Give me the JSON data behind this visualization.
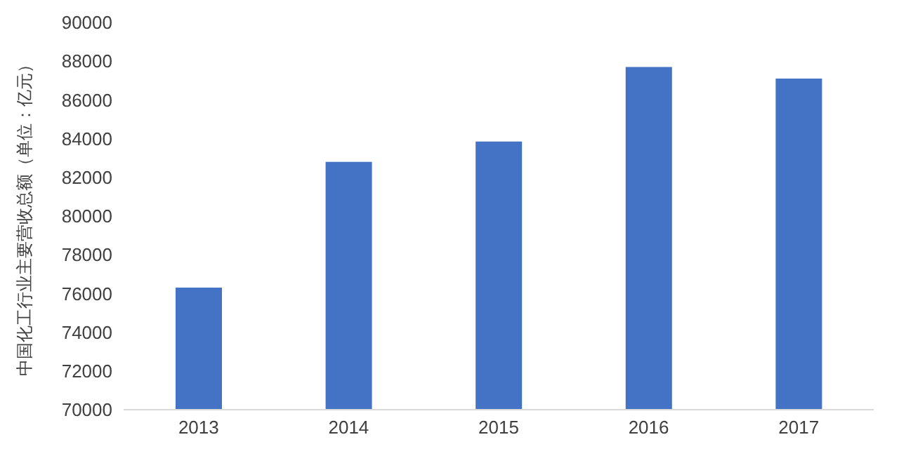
{
  "chart_data": {
    "type": "bar",
    "ylabel": "中国化工行业主要营收总额（单位：亿元）",
    "categories": [
      "2013",
      "2014",
      "2015",
      "2016",
      "2017"
    ],
    "values": [
      76300,
      82800,
      83850,
      87700,
      87100
    ],
    "color": "#4472c4",
    "ylim": [
      70000,
      90000
    ],
    "yticks": [
      70000,
      72000,
      74000,
      76000,
      78000,
      80000,
      82000,
      84000,
      86000,
      88000,
      90000
    ],
    "grid": false
  }
}
